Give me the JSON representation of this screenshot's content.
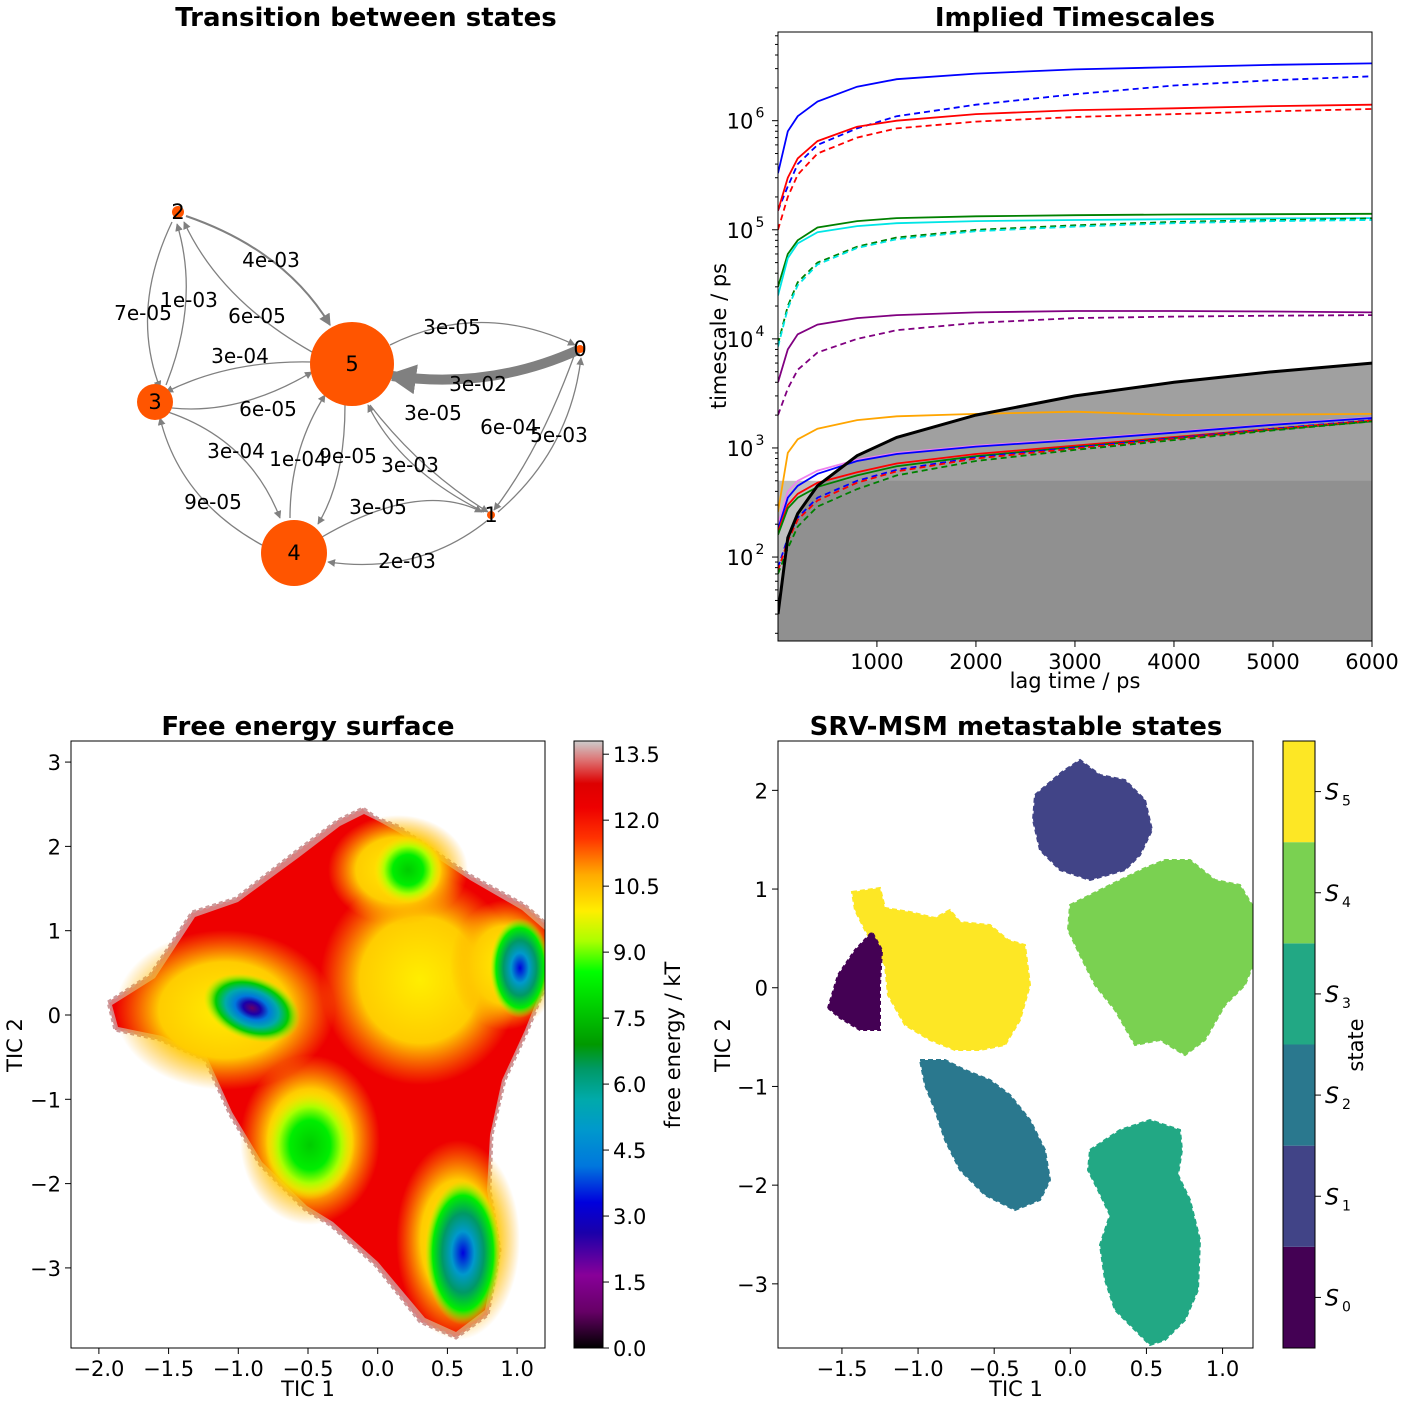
{
  "chart_data": [
    {
      "type": "network",
      "title": "Transition between states",
      "nodes": [
        {
          "id": "0",
          "label": "0",
          "size": "small"
        },
        {
          "id": "1",
          "label": "1",
          "size": "small"
        },
        {
          "id": "2",
          "label": "2",
          "size": "small"
        },
        {
          "id": "3",
          "label": "3",
          "size": "medium"
        },
        {
          "id": "4",
          "label": "4",
          "size": "large"
        },
        {
          "id": "5",
          "label": "5",
          "size": "large"
        }
      ],
      "edge_labels": [
        "4e-03",
        "7e-05",
        "1e-03",
        "6e-05",
        "3e-05",
        "3e-04",
        "3e-02",
        "6e-05",
        "3e-05",
        "6e-04",
        "5e-03",
        "3e-04",
        "1e-04",
        "9e-05",
        "3e-03",
        "9e-05",
        "3e-05",
        "2e-03"
      ],
      "node_color": "#ff5500",
      "edge_color": "#808080"
    },
    {
      "type": "line",
      "title": "Implied Timescales",
      "xlabel": "lag time / ps",
      "ylabel": "timescale / ps",
      "xlim": [
        1,
        6000
      ],
      "ylim": [
        17,
        6500000
      ],
      "yscale": "log",
      "xticks": [
        "1000",
        "2000",
        "3000",
        "4000",
        "5000",
        "6000"
      ],
      "yticks": [
        "10",
        "10",
        "10",
        "10",
        "10"
      ],
      "yticks_exp": [
        "2",
        "3",
        "4",
        "5",
        "6"
      ],
      "x": [
        1,
        100,
        200,
        400,
        800,
        1200,
        2000,
        3000,
        4000,
        5000,
        6000
      ],
      "series": [
        {
          "color": "#0000ff",
          "style": "solid",
          "values": [
            330000,
            800000,
            1100000,
            1500000,
            2050000,
            2400000,
            2700000,
            2950000,
            3100000,
            3250000,
            3350000
          ]
        },
        {
          "color": "#0000ff",
          "style": "dashed",
          "values": [
            150000,
            250000,
            400000,
            600000,
            850000,
            1100000,
            1400000,
            1750000,
            2100000,
            2350000,
            2550000
          ]
        },
        {
          "color": "#ff0000",
          "style": "solid",
          "values": [
            150000,
            300000,
            450000,
            650000,
            880000,
            1000000,
            1150000,
            1250000,
            1300000,
            1360000,
            1400000
          ]
        },
        {
          "color": "#ff0000",
          "style": "dashed",
          "values": [
            100000,
            200000,
            320000,
            500000,
            700000,
            850000,
            980000,
            1080000,
            1150000,
            1220000,
            1280000
          ]
        },
        {
          "color": "#008000",
          "style": "solid",
          "values": [
            30000,
            60000,
            80000,
            105000,
            120000,
            128000,
            133000,
            136000,
            138000,
            139000,
            140000
          ]
        },
        {
          "color": "#00e5e5",
          "style": "solid",
          "values": [
            25000,
            55000,
            75000,
            95000,
            108000,
            115000,
            120000,
            123000,
            125000,
            127000,
            128000
          ]
        },
        {
          "color": "#008000",
          "style": "dashed",
          "values": [
            9000,
            20000,
            33000,
            50000,
            70000,
            85000,
            100000,
            110000,
            118000,
            123000,
            127000
          ]
        },
        {
          "color": "#00e5e5",
          "style": "dashed",
          "values": [
            8500,
            19000,
            31000,
            48000,
            68000,
            82000,
            97000,
            107000,
            115000,
            120000,
            123000
          ]
        },
        {
          "color": "#800080",
          "style": "solid",
          "values": [
            4000,
            8000,
            11000,
            13500,
            15500,
            16500,
            17500,
            18000,
            18000,
            17800,
            17500
          ]
        },
        {
          "color": "#800080",
          "style": "dashed",
          "values": [
            2000,
            3500,
            5200,
            7500,
            10000,
            12000,
            14000,
            15500,
            16000,
            16300,
            16500
          ]
        },
        {
          "color": "#ffa500",
          "style": "solid",
          "values": [
            260,
            900,
            1200,
            1500,
            1800,
            1950,
            2050,
            2150,
            2000,
            2020,
            2050
          ]
        },
        {
          "color": "#ee82ee",
          "style": "solid",
          "values": [
            200,
            400,
            500,
            620,
            780,
            900,
            1050,
            1200,
            1400,
            1650,
            1900
          ]
        },
        {
          "color": "#0000ff",
          "style": "solid",
          "values": [
            180,
            350,
            450,
            580,
            760,
            880,
            1030,
            1180,
            1380,
            1630,
            1880
          ]
        },
        {
          "color": "#ff0000",
          "style": "solid",
          "values": [
            170,
            300,
            380,
            480,
            600,
            720,
            880,
            1050,
            1260,
            1500,
            1780
          ]
        },
        {
          "color": "#008000",
          "style": "solid",
          "values": [
            160,
            280,
            350,
            440,
            560,
            680,
            840,
            1020,
            1230,
            1470,
            1750
          ]
        },
        {
          "color": "#0000ff",
          "style": "dashed",
          "values": [
            80,
            150,
            230,
            350,
            500,
            630,
            820,
            1010,
            1230,
            1500,
            1800
          ]
        },
        {
          "color": "#ff0000",
          "style": "dashed",
          "values": [
            75,
            140,
            220,
            330,
            480,
            610,
            800,
            990,
            1210,
            1480,
            1780
          ]
        },
        {
          "color": "#008000",
          "style": "dashed",
          "values": [
            70,
            120,
            190,
            290,
            420,
            560,
            760,
            960,
            1180,
            1450,
            1750
          ]
        }
      ],
      "lag_line": {
        "color": "#000000",
        "x": [
          1,
          100,
          200,
          400,
          800,
          1200,
          2000,
          3000,
          4000,
          5000,
          6000
        ],
        "values": [
          30,
          150,
          250,
          450,
          850,
          1250,
          2000,
          3000,
          4000,
          5000,
          6000
        ]
      },
      "shade_color": "#808080",
      "band_value": 500
    },
    {
      "type": "heatmap",
      "title": "Free energy surface",
      "xlabel": "TIC 1",
      "ylabel": "TIC 2",
      "xlim": [
        -2.2,
        1.2
      ],
      "ylim": [
        -3.95,
        3.25
      ],
      "xticks": [
        "−2.0",
        "−1.5",
        "−1.0",
        "−0.5",
        "0.0",
        "0.5",
        "1.0"
      ],
      "yticks": [
        "3",
        "2",
        "1",
        "0",
        "−1",
        "−2",
        "−3"
      ],
      "colorbar": {
        "label": "free energy / kT",
        "range": [
          0,
          13.8
        ],
        "ticks": [
          "0.0",
          "1.5",
          "3.0",
          "4.5",
          "6.0",
          "7.5",
          "9.0",
          "10.5",
          "12.0",
          "13.5"
        ],
        "colormap": "nipy_spectral"
      },
      "minima": [
        {
          "x": -0.98,
          "y": 0.15
        },
        {
          "x": 1.1,
          "y": 0.55
        },
        {
          "x": 0.62,
          "y": -2.85
        },
        {
          "x": -0.45,
          "y": -1.6
        },
        {
          "x": 0.25,
          "y": 1.65
        }
      ]
    },
    {
      "type": "heatmap",
      "title": "SRV-MSM metastable states",
      "xlabel": "TIC 1",
      "ylabel": "TIC 2",
      "xlim": [
        -1.92,
        1.2
      ],
      "ylim": [
        -3.65,
        2.5
      ],
      "xticks": [
        "−1.5",
        "−1.0",
        "−0.5",
        "0.0",
        "0.5",
        "1.0"
      ],
      "yticks": [
        "2",
        "1",
        "0",
        "−1",
        "−2",
        "−3"
      ],
      "colorbar": {
        "label": "state",
        "ticks": [
          "S",
          "S",
          "S",
          "S",
          "S",
          "S"
        ],
        "tick_sub": [
          "5",
          "4",
          "3",
          "2",
          "1",
          "0"
        ]
      },
      "state_colors": [
        "#440154",
        "#414487",
        "#2a788e",
        "#22a884",
        "#7ad151",
        "#fde725"
      ]
    }
  ]
}
